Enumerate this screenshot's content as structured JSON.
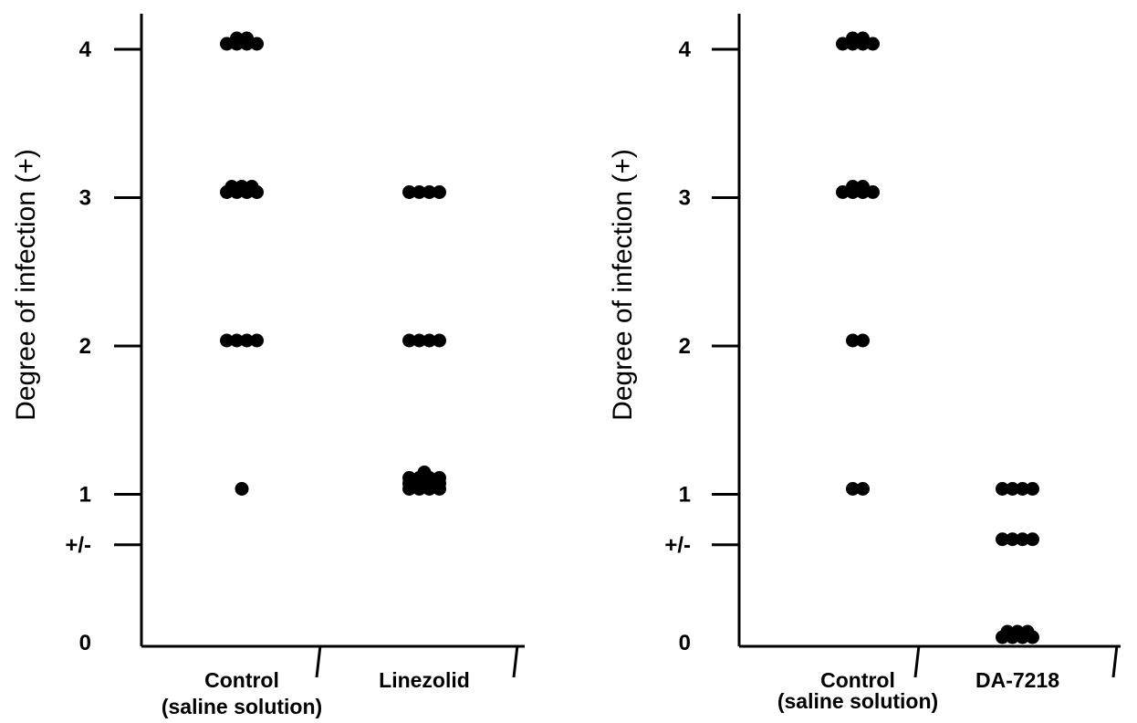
{
  "chart_data": [
    {
      "type": "scatter",
      "title": "",
      "ylabel": "Degree of infection (+)",
      "xlabel": "",
      "y_ticks": [
        {
          "value": 0,
          "label": "0"
        },
        {
          "value": 0.66,
          "label": "+/-"
        },
        {
          "value": 1,
          "label": "1"
        },
        {
          "value": 2,
          "label": "2"
        },
        {
          "value": 3,
          "label": "3"
        },
        {
          "value": 4,
          "label": "4"
        }
      ],
      "categories": [
        {
          "label_lines": [
            "Control",
            "(saline solution)"
          ]
        },
        {
          "label_lines": [
            "Linezolid"
          ]
        }
      ],
      "series": [
        {
          "category_index": 0,
          "values": [
            4,
            4,
            4,
            4,
            4,
            4,
            3,
            3,
            3,
            3,
            3,
            3,
            3,
            2,
            2,
            2,
            2,
            1
          ]
        },
        {
          "category_index": 1,
          "values": [
            3,
            3,
            3,
            3,
            2,
            2,
            2,
            2,
            1,
            1,
            1,
            1,
            1,
            1,
            1,
            1,
            1,
            1,
            1,
            1,
            1
          ]
        }
      ],
      "grid": false
    },
    {
      "type": "scatter",
      "title": "",
      "ylabel": "Degree of infection (+)",
      "xlabel": "",
      "y_ticks": [
        {
          "value": 0,
          "label": "0"
        },
        {
          "value": 0.66,
          "label": "+/-"
        },
        {
          "value": 1,
          "label": "1"
        },
        {
          "value": 2,
          "label": "2"
        },
        {
          "value": 3,
          "label": "3"
        },
        {
          "value": 4,
          "label": "4"
        }
      ],
      "categories": [
        {
          "label_lines": [
            "Control",
            "(saline solution)"
          ]
        },
        {
          "label_lines": [
            "DA-7218"
          ]
        }
      ],
      "series": [
        {
          "category_index": 0,
          "values": [
            4,
            4,
            4,
            4,
            4,
            4,
            3,
            3,
            3,
            3,
            3,
            3,
            2,
            2,
            1,
            1
          ]
        },
        {
          "category_index": 1,
          "values": [
            1,
            1,
            1,
            1,
            0.66,
            0.66,
            0.66,
            0.66,
            0,
            0,
            0,
            0,
            0,
            0,
            0
          ]
        }
      ],
      "grid": false
    }
  ]
}
